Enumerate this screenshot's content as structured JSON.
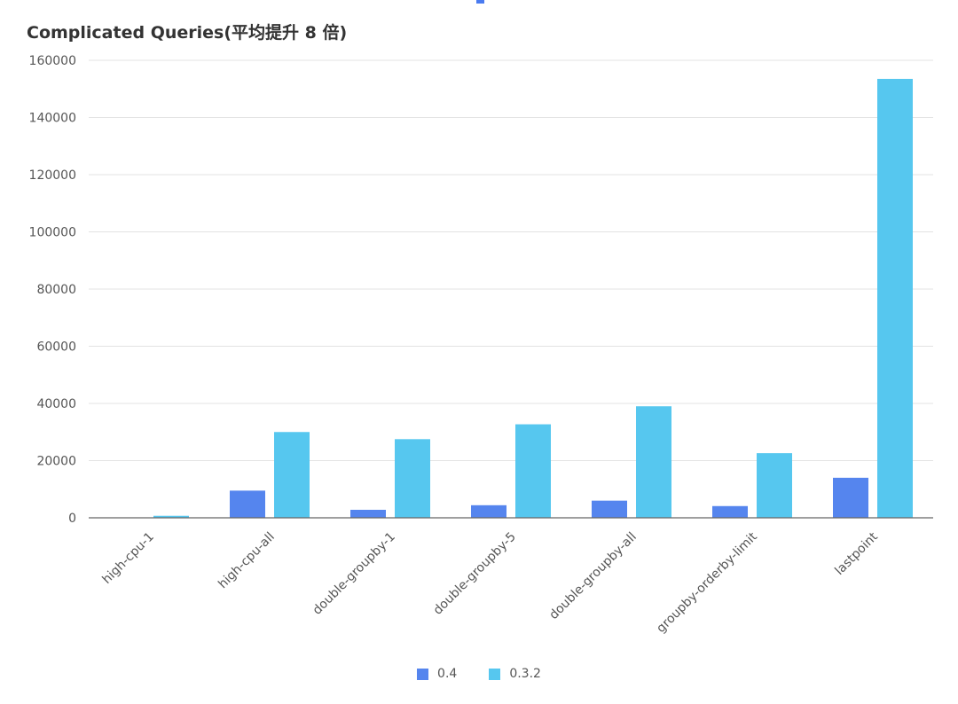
{
  "chart_data": {
    "type": "bar",
    "title": "Complicated Queries(平均提升 8 倍)",
    "xlabel": "",
    "ylabel": "",
    "ylim": [
      0,
      160000
    ],
    "yticks": [
      0,
      20000,
      40000,
      60000,
      80000,
      100000,
      120000,
      140000,
      160000
    ],
    "grid": true,
    "legend_position": "bottom",
    "categories": [
      "high-cpu-1",
      "high-cpu-all",
      "double-groupby-1",
      "double-groupby-5",
      "double-groupby-all",
      "groupby-orderby-limit",
      "lastpoint"
    ],
    "series": [
      {
        "name": "0.4",
        "color": "#5585ee",
        "values": [
          100,
          9500,
          2800,
          4400,
          6000,
          4100,
          14000
        ]
      },
      {
        "name": "0.3.2",
        "color": "#56c7ef",
        "values": [
          700,
          30000,
          27500,
          32700,
          39000,
          22600,
          153500
        ]
      }
    ]
  }
}
